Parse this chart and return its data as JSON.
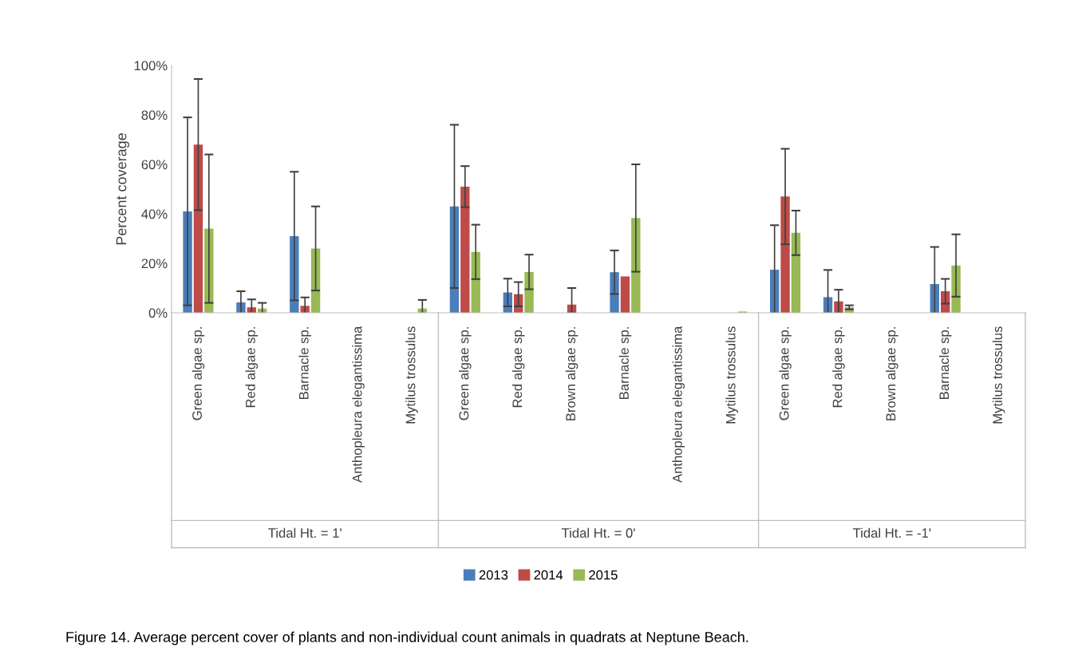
{
  "chart_data": {
    "type": "bar",
    "ylabel": "Percent coverage",
    "categories": [
      "Green algae sp.",
      "Red algae sp.",
      "Barnacle sp.",
      "Anthopleura elegantissima",
      "Mytilus trossulus",
      "Green algae sp.",
      "Red algae sp.",
      "Brown algae sp.",
      "Barnacle sp.",
      "Anthopleura elegantissima",
      "Mytilus trossulus",
      "Green algae sp.",
      "Red algae sp.",
      "Brown algae sp.",
      "Barnacle sp.",
      "Mytilus trossulus"
    ],
    "series": [
      {
        "name": "2013",
        "color": "#4a7ebb",
        "values": [
          41,
          4.2,
          31,
          null,
          0,
          43,
          8.2,
          null,
          16.4,
          null,
          0,
          17.4,
          6.3,
          null,
          11.6,
          null
        ],
        "errors": [
          38,
          4.5,
          26,
          null,
          null,
          33,
          5.6,
          null,
          8.8,
          null,
          null,
          18,
          11,
          null,
          15,
          null
        ]
      },
      {
        "name": "2014",
        "color": "#be4b48",
        "values": [
          68,
          2.2,
          2.8,
          0,
          null,
          51,
          7.5,
          3.3,
          14.7,
          0,
          null,
          47,
          4.6,
          0,
          8.7,
          null
        ],
        "errors": [
          26.5,
          3.2,
          3.4,
          null,
          null,
          8.3,
          4.9,
          [
            0,
            10
          ],
          null,
          null,
          null,
          19.3,
          4.7,
          null,
          5,
          null
        ]
      },
      {
        "name": "2015",
        "color": "#98b954",
        "values": [
          34,
          1.7,
          26,
          null,
          1.7,
          24.6,
          16.5,
          0,
          38.3,
          null,
          0.5,
          32.3,
          2.2,
          null,
          19.1,
          0
        ],
        "errors": [
          30,
          2.3,
          17,
          null,
          3.5,
          11,
          7,
          null,
          21.7,
          null,
          null,
          9,
          0.8,
          null,
          12.6,
          null
        ]
      }
    ],
    "ylim": [
      0,
      100
    ],
    "yticks": [
      {
        "value": 0,
        "label": "0%"
      },
      {
        "value": 20,
        "label": "20%"
      },
      {
        "value": 40,
        "label": "40%"
      },
      {
        "value": 60,
        "label": "60%"
      },
      {
        "value": 80,
        "label": "80%"
      },
      {
        "value": 100,
        "label": "100%"
      }
    ],
    "grid": false,
    "legend": "bottom",
    "annotations": [
      "Tidal Ht. = 1'",
      "Tidal Ht. = 0'",
      "Tidal Ht. = -1'",
      "Figure 14. Average percent cover of plants and non-individual count animals in quadrats at Neptune Beach."
    ]
  }
}
